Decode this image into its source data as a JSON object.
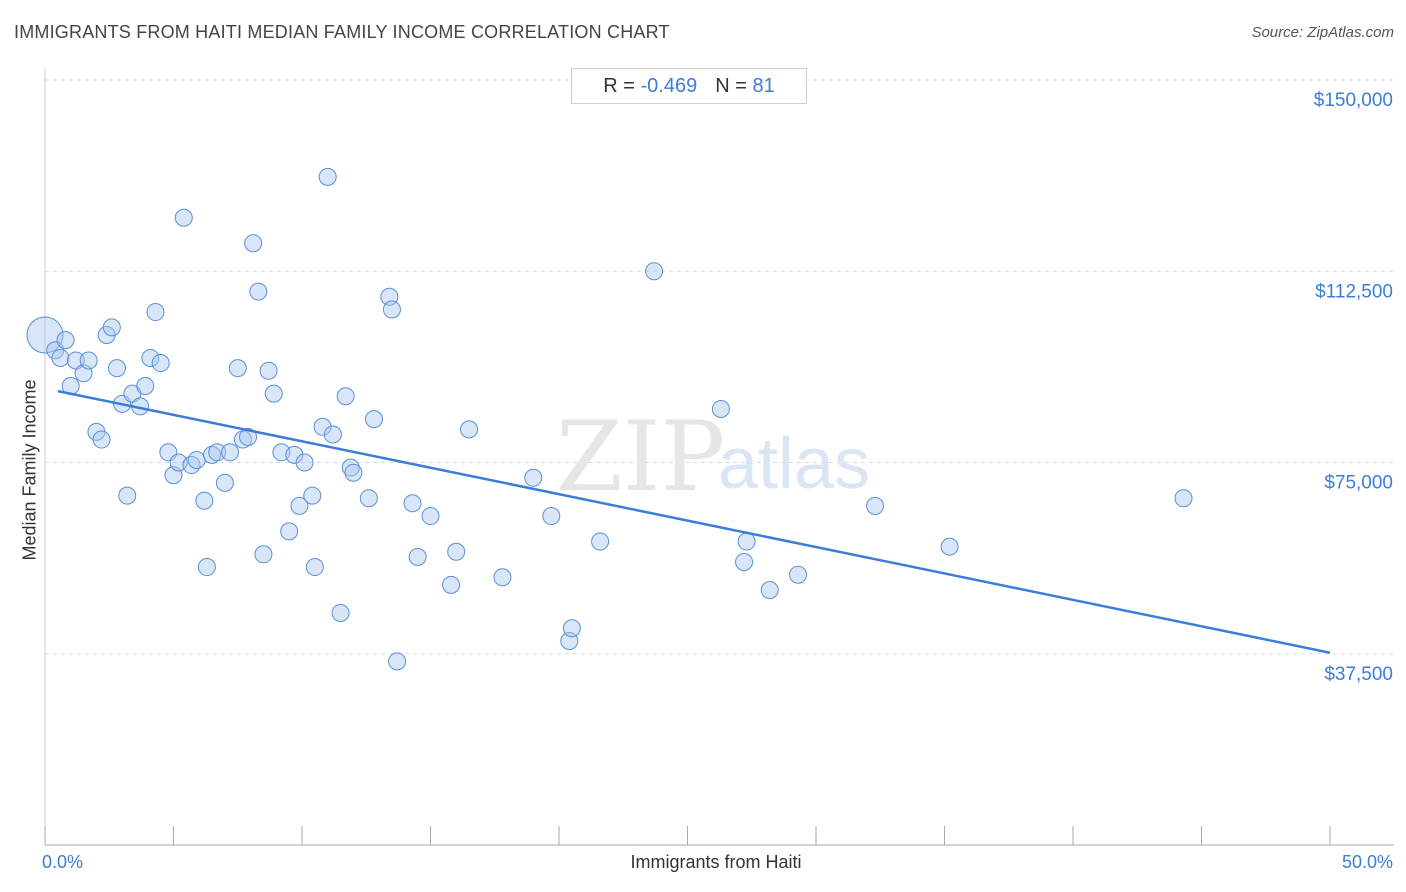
{
  "header": {
    "title": "IMMIGRANTS FROM HAITI MEDIAN FAMILY INCOME CORRELATION CHART",
    "source": "Source: ZipAtlas.com"
  },
  "stats": {
    "r_label": "R =",
    "r_value": "-0.469",
    "n_label": "N =",
    "n_value": "81"
  },
  "watermark": {
    "zip": "ZIP",
    "atlas": "atlas"
  },
  "colors": {
    "accent": "#3b7dd8",
    "point_fill": "#a9c8f0",
    "point_stroke": "#5a90d8",
    "grid": "#d9d9d9"
  },
  "chart_data": {
    "type": "scatter",
    "title": "IMMIGRANTS FROM HAITI MEDIAN FAMILY INCOME CORRELATION CHART",
    "xlabel": "Immigrants from Haiti",
    "ylabel": "Median Family Income",
    "xlim": [
      0,
      50
    ],
    "ylim": [
      0,
      155000
    ],
    "x_tick_labels": [
      "0.0%",
      "50.0%"
    ],
    "y_ticks": [
      {
        "value": 150000,
        "label": "$150,000"
      },
      {
        "value": 112500,
        "label": "$112,500"
      },
      {
        "value": 75000,
        "label": "$75,000"
      },
      {
        "value": 37500,
        "label": "$37,500"
      }
    ],
    "trendline": {
      "x": [
        0.5,
        50
      ],
      "y": [
        89000,
        37700
      ]
    },
    "points": [
      {
        "x": 0.0,
        "y": 100000,
        "big": true
      },
      {
        "x": 0.4,
        "y": 97000
      },
      {
        "x": 0.6,
        "y": 95500
      },
      {
        "x": 0.8,
        "y": 99000
      },
      {
        "x": 1.0,
        "y": 90000
      },
      {
        "x": 1.2,
        "y": 95000
      },
      {
        "x": 1.5,
        "y": 92500
      },
      {
        "x": 1.7,
        "y": 95000
      },
      {
        "x": 2.0,
        "y": 81000
      },
      {
        "x": 2.2,
        "y": 79500
      },
      {
        "x": 2.4,
        "y": 100000
      },
      {
        "x": 2.6,
        "y": 101500
      },
      {
        "x": 2.8,
        "y": 93500
      },
      {
        "x": 3.0,
        "y": 86500
      },
      {
        "x": 3.2,
        "y": 68500
      },
      {
        "x": 3.4,
        "y": 88500
      },
      {
        "x": 3.7,
        "y": 86000
      },
      {
        "x": 3.9,
        "y": 90000
      },
      {
        "x": 4.1,
        "y": 95500
      },
      {
        "x": 4.3,
        "y": 104500
      },
      {
        "x": 4.5,
        "y": 94500
      },
      {
        "x": 4.8,
        "y": 77000
      },
      {
        "x": 5.0,
        "y": 72500
      },
      {
        "x": 5.2,
        "y": 75000
      },
      {
        "x": 5.4,
        "y": 123000
      },
      {
        "x": 5.7,
        "y": 74500
      },
      {
        "x": 5.9,
        "y": 75500
      },
      {
        "x": 6.2,
        "y": 67500
      },
      {
        "x": 6.3,
        "y": 54500
      },
      {
        "x": 6.5,
        "y": 76500
      },
      {
        "x": 6.7,
        "y": 77000
      },
      {
        "x": 7.0,
        "y": 71000
      },
      {
        "x": 7.2,
        "y": 77000
      },
      {
        "x": 7.5,
        "y": 93500
      },
      {
        "x": 7.7,
        "y": 79500
      },
      {
        "x": 7.9,
        "y": 80000
      },
      {
        "x": 8.1,
        "y": 118000
      },
      {
        "x": 8.3,
        "y": 108500
      },
      {
        "x": 8.5,
        "y": 57000
      },
      {
        "x": 8.7,
        "y": 93000
      },
      {
        "x": 8.9,
        "y": 88500
      },
      {
        "x": 9.2,
        "y": 77000
      },
      {
        "x": 9.5,
        "y": 61500
      },
      {
        "x": 9.7,
        "y": 76500
      },
      {
        "x": 9.9,
        "y": 66500
      },
      {
        "x": 10.1,
        "y": 75000
      },
      {
        "x": 10.4,
        "y": 68500
      },
      {
        "x": 10.5,
        "y": 54500
      },
      {
        "x": 10.8,
        "y": 82000
      },
      {
        "x": 11.0,
        "y": 131000
      },
      {
        "x": 11.2,
        "y": 80500
      },
      {
        "x": 11.5,
        "y": 45500
      },
      {
        "x": 11.7,
        "y": 88000
      },
      {
        "x": 11.9,
        "y": 74000
      },
      {
        "x": 12.0,
        "y": 73000
      },
      {
        "x": 12.6,
        "y": 68000
      },
      {
        "x": 12.8,
        "y": 83500
      },
      {
        "x": 13.4,
        "y": 107500
      },
      {
        "x": 13.5,
        "y": 105000
      },
      {
        "x": 13.7,
        "y": 36000
      },
      {
        "x": 14.3,
        "y": 67000
      },
      {
        "x": 14.5,
        "y": 56500
      },
      {
        "x": 15.0,
        "y": 64500
      },
      {
        "x": 15.8,
        "y": 51000
      },
      {
        "x": 16.0,
        "y": 57500
      },
      {
        "x": 16.5,
        "y": 81500
      },
      {
        "x": 17.8,
        "y": 52500
      },
      {
        "x": 19.0,
        "y": 72000
      },
      {
        "x": 19.7,
        "y": 64500
      },
      {
        "x": 20.4,
        "y": 40000
      },
      {
        "x": 20.5,
        "y": 42500
      },
      {
        "x": 21.6,
        "y": 59500
      },
      {
        "x": 23.7,
        "y": 112500
      },
      {
        "x": 26.3,
        "y": 85500
      },
      {
        "x": 27.2,
        "y": 55500
      },
      {
        "x": 27.3,
        "y": 59500
      },
      {
        "x": 28.2,
        "y": 50000
      },
      {
        "x": 29.3,
        "y": 53000
      },
      {
        "x": 32.3,
        "y": 66500
      },
      {
        "x": 35.2,
        "y": 58500
      },
      {
        "x": 44.3,
        "y": 68000
      }
    ]
  },
  "x_axis": {
    "min_label": "0.0%",
    "max_label": "50.0%"
  }
}
